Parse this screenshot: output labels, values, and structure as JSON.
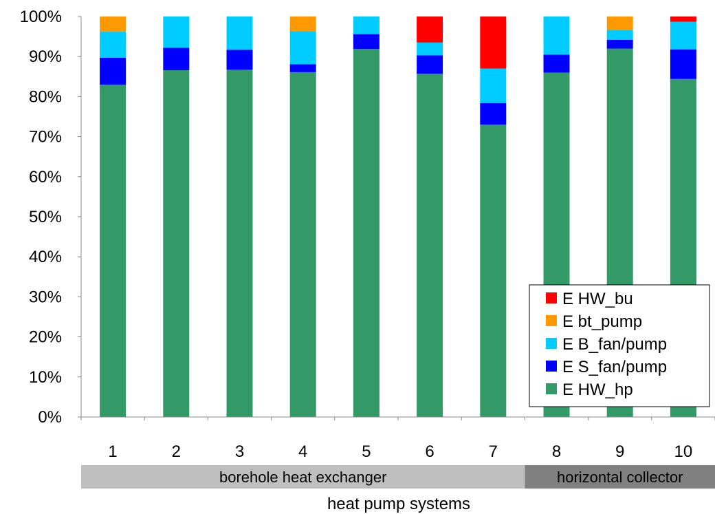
{
  "chart_data": {
    "type": "bar",
    "stacked": true,
    "percent": true,
    "categories": [
      "1",
      "2",
      "3",
      "4",
      "5",
      "6",
      "7",
      "8",
      "9",
      "10"
    ],
    "ylim": [
      0,
      100
    ],
    "yticks": [
      "0%",
      "10%",
      "20%",
      "30%",
      "40%",
      "50%",
      "60%",
      "70%",
      "80%",
      "90%",
      "100%"
    ],
    "xlabel": "heat pump systems",
    "ylabel": "",
    "title": "",
    "grid": false,
    "legend_position": "bottom-right",
    "groups": [
      {
        "label": "borehole heat exchanger",
        "categories": [
          "1",
          "2",
          "3",
          "4",
          "5",
          "6",
          "7"
        ],
        "color": "#bfbfbf"
      },
      {
        "label": "horizontal collector",
        "categories": [
          "8",
          "9",
          "10"
        ],
        "color": "#808080"
      }
    ],
    "series": [
      {
        "name": "E HW_hp",
        "color": "#339966",
        "values": [
          83.0,
          86.6,
          86.7,
          86.1,
          91.9,
          85.7,
          73.0,
          86.0,
          92.0,
          84.4
        ]
      },
      {
        "name": "E S_fan/pump",
        "color": "#0000ff",
        "values": [
          6.7,
          5.6,
          5.0,
          2.0,
          3.7,
          4.6,
          5.4,
          4.5,
          2.2,
          7.4
        ]
      },
      {
        "name": "E B_fan/pump",
        "color": "#00ccff",
        "values": [
          6.5,
          7.8,
          8.3,
          8.2,
          4.4,
          3.2,
          8.6,
          9.5,
          2.5,
          6.9
        ]
      },
      {
        "name": "E bt_pump",
        "color": "#ff9900",
        "values": [
          3.8,
          0,
          0,
          3.7,
          0,
          0,
          0,
          0,
          3.3,
          0
        ]
      },
      {
        "name": "E HW_bu",
        "color": "#ff0000",
        "values": [
          0,
          0,
          0,
          0,
          0,
          6.5,
          13.0,
          0,
          0,
          1.3
        ]
      }
    ]
  }
}
